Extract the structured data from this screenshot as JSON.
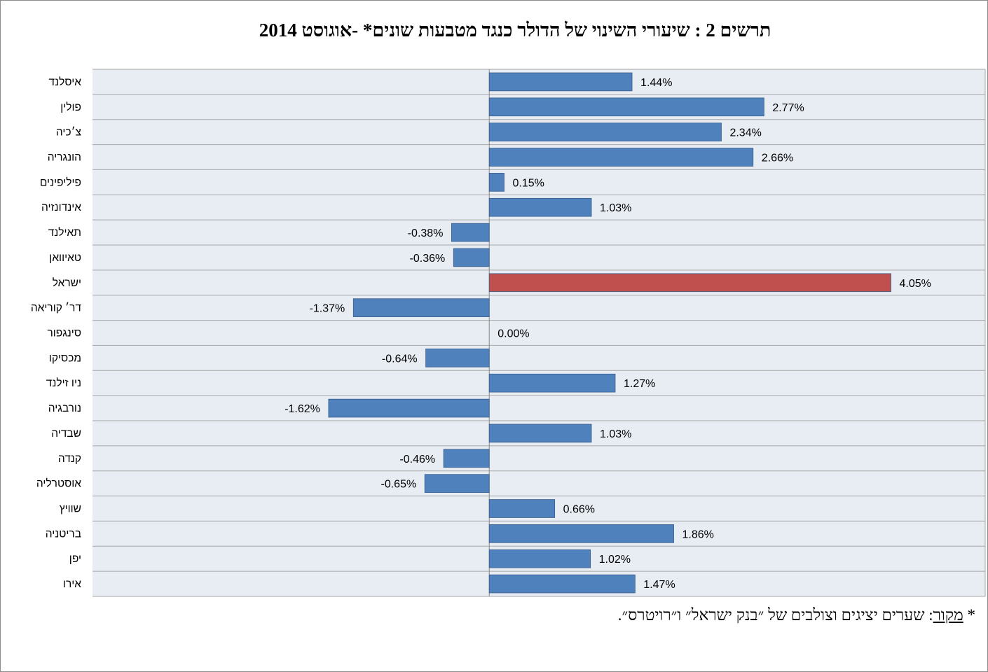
{
  "title": "תרשים 2 : שיעורי השינוי של הדולר כנגד מטבעות שונים* -אוגוסט 2014",
  "footnote": {
    "star": "*",
    "source_label": "מקור",
    "text": ": שערים יציגים וצולבים של ״בנק ישראל״ ו״רויטרס״."
  },
  "colors": {
    "bar": "#4f81bd",
    "highlight": "#c0504d",
    "plot_bg": "#e8edf4",
    "grid": "#a6a6a6"
  },
  "chart_data": {
    "type": "bar",
    "orientation": "horizontal",
    "title": "תרשים 2 : שיעורי השינוי של הדולר כנגד מטבעות שונים* -אוגוסט 2014",
    "unit": "%",
    "xlim": [
      -4.0,
      5.0
    ],
    "highlight_category": "ישראל",
    "categories": [
      "איסלנד",
      "פולין",
      "צ׳כיה",
      "הונגריה",
      "פיליפינים",
      "אינדונזיה",
      "תאילנד",
      "טאיוואן",
      "ישראל",
      "דר׳ קוריאה",
      "סינגפור",
      "מכסיקו",
      "ניו זילנד",
      "נורבגיה",
      "שבדיה",
      "קנדה",
      "אוסטרליה",
      "שוויץ",
      "בריטניה",
      "יפן",
      "אירו"
    ],
    "values": [
      1.44,
      2.77,
      2.34,
      2.66,
      0.15,
      1.03,
      -0.38,
      -0.36,
      4.05,
      -1.37,
      0.0,
      -0.64,
      1.27,
      -1.62,
      1.03,
      -0.46,
      -0.65,
      0.66,
      1.86,
      1.02,
      1.47
    ],
    "value_labels": [
      "1.44%",
      "2.77%",
      "2.34%",
      "2.66%",
      "0.15%",
      "1.03%",
      "-0.38%",
      "-0.36%",
      "4.05%",
      "-1.37%",
      "0.00%",
      "-0.64%",
      "1.27%",
      "-1.62%",
      "1.03%",
      "-0.46%",
      "-0.65%",
      "0.66%",
      "1.86%",
      "1.02%",
      "1.47%"
    ]
  }
}
